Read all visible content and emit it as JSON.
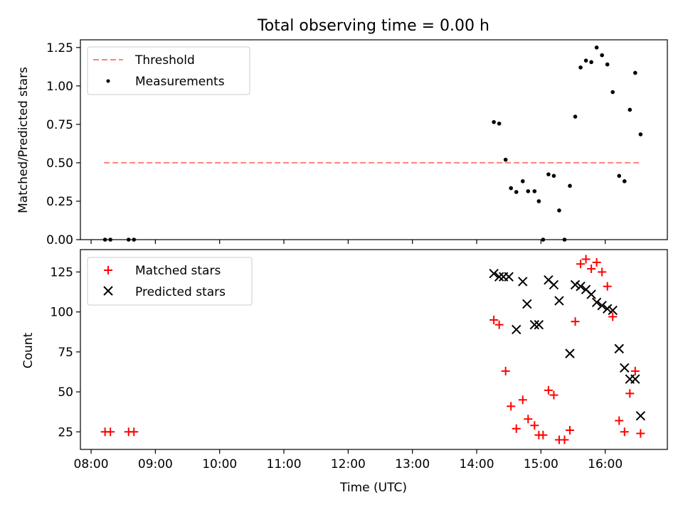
{
  "title": "Total observing time = 0.00 h",
  "chart_data": [
    {
      "type": "scatter",
      "panel": "top",
      "ylabel": "Matched/Predicted stars",
      "xlabel": "",
      "ylim": [
        0.0,
        1.3
      ],
      "yticks": [
        0.0,
        0.25,
        0.5,
        0.75,
        1.0,
        1.25
      ],
      "ytick_labels": [
        "0.00",
        "0.25",
        "0.50",
        "0.75",
        "1.00",
        "1.25"
      ],
      "xlim": [
        "07:50",
        "16:58"
      ],
      "grid": false,
      "legend_position": "upper-left",
      "threshold": {
        "name": "Threshold",
        "value": 0.5,
        "x": [
          "08:12",
          "16:33"
        ],
        "color": "#ff8080",
        "style": "dashed"
      },
      "series": [
        {
          "name": "Measurements",
          "marker": "dot",
          "color": "#000000",
          "points": [
            [
              "08:13",
              0.0
            ],
            [
              "08:18",
              0.0
            ],
            [
              "08:35",
              0.0
            ],
            [
              "08:40",
              0.0
            ],
            [
              "14:16",
              0.765
            ],
            [
              "14:21",
              0.755
            ],
            [
              "14:27",
              0.52
            ],
            [
              "14:32",
              0.335
            ],
            [
              "14:37",
              0.31
            ],
            [
              "14:43",
              0.38
            ],
            [
              "14:48",
              0.315
            ],
            [
              "14:54",
              0.315
            ],
            [
              "14:58",
              0.25
            ],
            [
              "15:02",
              0.0
            ],
            [
              "15:07",
              0.425
            ],
            [
              "15:12",
              0.415
            ],
            [
              "15:17",
              0.19
            ],
            [
              "15:22",
              0.0
            ],
            [
              "15:27",
              0.35
            ],
            [
              "15:32",
              0.8
            ],
            [
              "15:37",
              1.12
            ],
            [
              "15:42",
              1.165
            ],
            [
              "15:47",
              1.155
            ],
            [
              "15:52",
              1.25
            ],
            [
              "15:57",
              1.2
            ],
            [
              "16:02",
              1.14
            ],
            [
              "16:07",
              0.96
            ],
            [
              "16:13",
              0.415
            ],
            [
              "16:18",
              0.38
            ],
            [
              "16:23",
              0.845
            ],
            [
              "16:28",
              1.085
            ],
            [
              "16:33",
              0.685
            ]
          ]
        }
      ]
    },
    {
      "type": "scatter",
      "panel": "bottom",
      "ylabel": "Count",
      "xlabel": "Time (UTC)",
      "ylim": [
        14,
        139
      ],
      "yticks": [
        25,
        50,
        75,
        100,
        125
      ],
      "ytick_labels": [
        "25",
        "50",
        "75",
        "100",
        "125"
      ],
      "xlim": [
        "07:50",
        "16:58"
      ],
      "xticks": [
        "08:00",
        "09:00",
        "10:00",
        "11:00",
        "12:00",
        "13:00",
        "14:00",
        "15:00",
        "16:00"
      ],
      "xtick_labels": [
        "08:00",
        "09:00",
        "10:00",
        "11:00",
        "12:00",
        "13:00",
        "14:00",
        "15:00",
        "16:00"
      ],
      "grid": false,
      "legend_position": "upper-left",
      "series": [
        {
          "name": "Matched stars",
          "marker": "plus",
          "color": "#ff0000",
          "points": [
            [
              "08:13",
              25
            ],
            [
              "08:18",
              25
            ],
            [
              "08:35",
              25
            ],
            [
              "08:40",
              25
            ],
            [
              "14:16",
              95
            ],
            [
              "14:21",
              92
            ],
            [
              "14:27",
              63
            ],
            [
              "14:32",
              41
            ],
            [
              "14:37",
              27
            ],
            [
              "14:43",
              45
            ],
            [
              "14:48",
              33
            ],
            [
              "14:54",
              29
            ],
            [
              "14:58",
              23
            ],
            [
              "15:02",
              23
            ],
            [
              "15:07",
              51
            ],
            [
              "15:12",
              48
            ],
            [
              "15:17",
              20
            ],
            [
              "15:22",
              20
            ],
            [
              "15:27",
              26
            ],
            [
              "15:32",
              94
            ],
            [
              "15:37",
              130
            ],
            [
              "15:42",
              133
            ],
            [
              "15:47",
              127
            ],
            [
              "15:52",
              131
            ],
            [
              "15:57",
              125
            ],
            [
              "16:02",
              116
            ],
            [
              "16:07",
              97
            ],
            [
              "16:13",
              32
            ],
            [
              "16:18",
              25
            ],
            [
              "16:23",
              49
            ],
            [
              "16:28",
              63
            ],
            [
              "16:33",
              24
            ]
          ]
        },
        {
          "name": "Predicted stars",
          "marker": "x",
          "color": "#000000",
          "points": [
            [
              "14:16",
              124
            ],
            [
              "14:21",
              122
            ],
            [
              "14:25",
              122
            ],
            [
              "14:30",
              122
            ],
            [
              "14:37",
              89
            ],
            [
              "14:43",
              119
            ],
            [
              "14:47",
              105
            ],
            [
              "14:54",
              92
            ],
            [
              "14:58",
              92
            ],
            [
              "15:07",
              120
            ],
            [
              "15:12",
              117
            ],
            [
              "15:17",
              107
            ],
            [
              "15:27",
              74
            ],
            [
              "15:32",
              117
            ],
            [
              "15:37",
              116
            ],
            [
              "15:42",
              114
            ],
            [
              "15:47",
              111
            ],
            [
              "15:52",
              106
            ],
            [
              "15:57",
              104
            ],
            [
              "16:02",
              102
            ],
            [
              "16:07",
              101
            ],
            [
              "16:13",
              77
            ],
            [
              "16:18",
              65
            ],
            [
              "16:23",
              58
            ],
            [
              "16:28",
              58
            ],
            [
              "16:33",
              35
            ]
          ]
        }
      ]
    }
  ]
}
